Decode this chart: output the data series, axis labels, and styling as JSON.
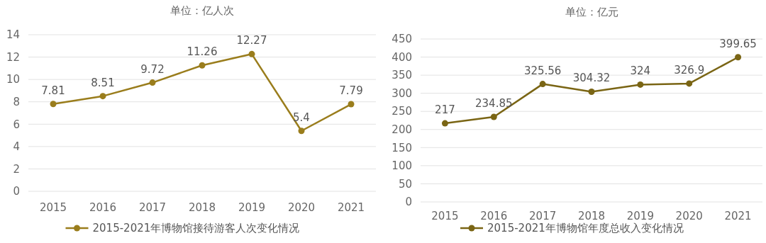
{
  "chart_data": [
    {
      "type": "line",
      "title": "单位：亿人次",
      "categories": [
        "2015",
        "2016",
        "2017",
        "2018",
        "2019",
        "2020",
        "2021"
      ],
      "series": [
        {
          "name": "2015-2021年博物馆接待游客人次变化情况",
          "color": "#9a7d1c",
          "values": [
            7.81,
            8.51,
            9.72,
            11.26,
            12.27,
            5.4,
            7.79
          ]
        }
      ],
      "ylim": [
        0,
        14
      ],
      "yticks": [
        0,
        2,
        4,
        6,
        8,
        10,
        12,
        14
      ],
      "grid": "y",
      "legend": "bottom",
      "marker": "circle",
      "data_labels": true
    },
    {
      "type": "line",
      "title": "单位：亿元",
      "categories": [
        "2015",
        "2016",
        "2017",
        "2018",
        "2019",
        "2020",
        "2021"
      ],
      "series": [
        {
          "name": "2015-2021年博物馆年度总收入变化情况",
          "color": "#7a6514",
          "values": [
            217,
            234.85,
            325.56,
            304.32,
            324,
            326.9,
            399.65
          ]
        }
      ],
      "ylim": [
        0,
        450
      ],
      "yticks": [
        0,
        50,
        100,
        150,
        200,
        250,
        300,
        350,
        400,
        450
      ],
      "grid": "y",
      "legend": "bottom",
      "marker": "circle",
      "data_labels": true
    }
  ]
}
